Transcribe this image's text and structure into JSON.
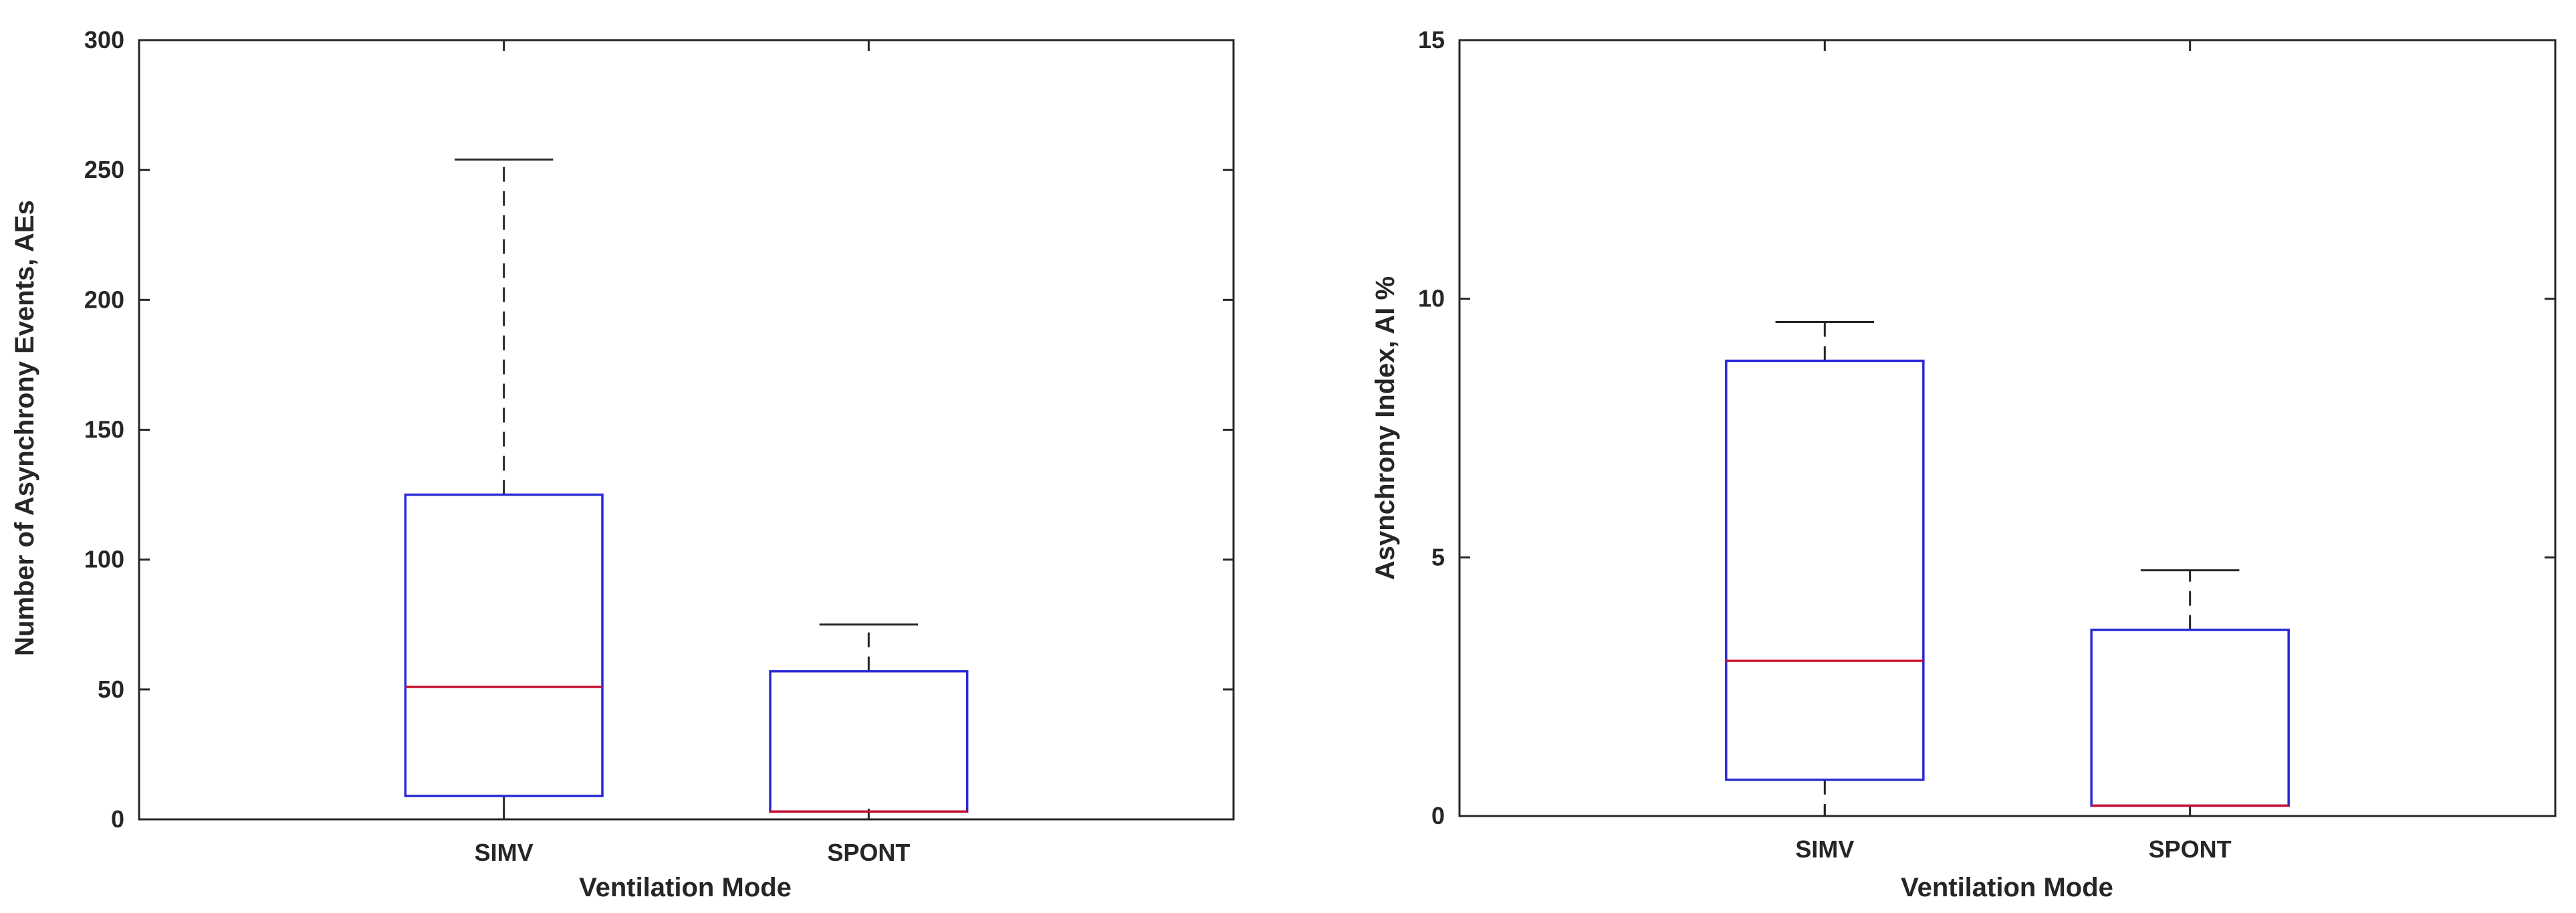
{
  "colors": {
    "box": "#2a2ad4",
    "median": "#c8102e",
    "whisker": "#262626",
    "axes": "#262626",
    "background": "#ffffff"
  },
  "chart_data": [
    {
      "type": "box",
      "title": "",
      "xlabel": "Ventilation Mode",
      "ylabel": "Number of Asynchrony Events, AEs",
      "categories": [
        "SIMV",
        "SPONT"
      ],
      "ylim": [
        0,
        300
      ],
      "yticks": [
        "0",
        "50",
        "100",
        "150",
        "200",
        "250",
        "300"
      ],
      "ytick_values": [
        0,
        50,
        100,
        150,
        200,
        250,
        300
      ],
      "boxes": [
        {
          "category": "SIMV",
          "whisker_low": 0,
          "q1": 9,
          "median": 51,
          "q3": 125,
          "whisker_high": 254
        },
        {
          "category": "SPONT",
          "whisker_low": 3,
          "q1": 3,
          "median": 3,
          "q3": 57,
          "whisker_high": 75
        }
      ],
      "grid": false,
      "legend": "none"
    },
    {
      "type": "box",
      "title": "",
      "xlabel": "Ventilation Mode",
      "ylabel": "Asynchrony Index, AI %",
      "categories": [
        "SIMV",
        "SPONT"
      ],
      "ylim": [
        0,
        15
      ],
      "yticks": [
        "0",
        "5",
        "10",
        "15"
      ],
      "ytick_values": [
        0,
        5,
        10,
        15
      ],
      "boxes": [
        {
          "category": "SIMV",
          "whisker_low": 0,
          "q1": 0.7,
          "median": 3.0,
          "q3": 8.8,
          "whisker_high": 9.55
        },
        {
          "category": "SPONT",
          "whisker_low": 0.2,
          "q1": 0.2,
          "median": 0.2,
          "q3": 3.6,
          "whisker_high": 4.75
        }
      ],
      "grid": false,
      "legend": "none"
    }
  ]
}
